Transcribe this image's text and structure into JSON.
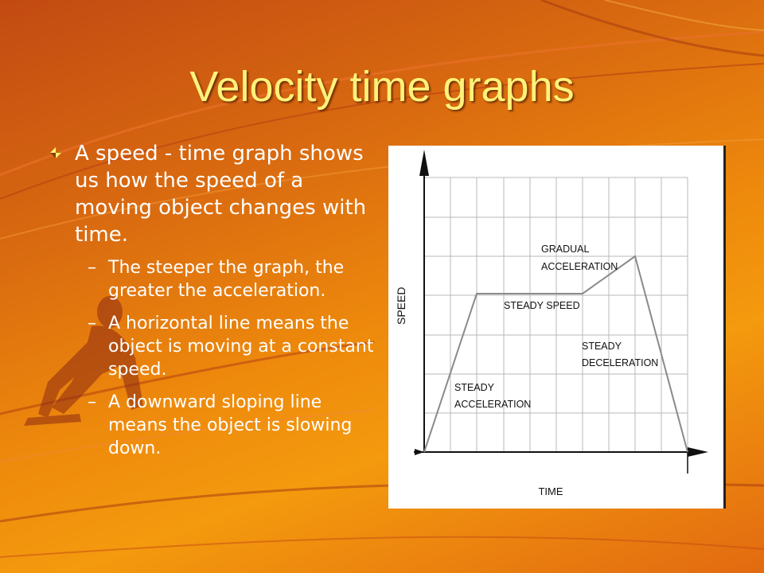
{
  "slide": {
    "title": "Velocity time graphs",
    "bullet_icon": "diamond-bullet-icon",
    "main_point": "A speed - time graph shows us how the speed of a moving object changes with time.",
    "subpoints": [
      {
        "dash": "–",
        "text": "The steeper the graph, the greater the acceleration."
      },
      {
        "dash": "–",
        "text": "A horizontal line means the object is moving at a constant speed."
      },
      {
        "dash": "–",
        "text": "A downward sloping line means the object is slowing down."
      }
    ]
  },
  "diagram": {
    "x_axis_label": "TIME",
    "y_axis_label": "SPEED",
    "segments": [
      {
        "label_lines": [
          "STEADY",
          "ACCELERATION"
        ]
      },
      {
        "label_lines": [
          "STEADY SPEED"
        ]
      },
      {
        "label_lines": [
          "GRADUAL",
          "ACCELERATION"
        ]
      },
      {
        "label_lines": [
          "STEADY",
          "DECELERATION"
        ]
      }
    ]
  },
  "colors": {
    "title": "#fff27a",
    "body_text": "#ffffff",
    "grid": "#b8b8b8",
    "plot_line": "#8a8a8a"
  }
}
